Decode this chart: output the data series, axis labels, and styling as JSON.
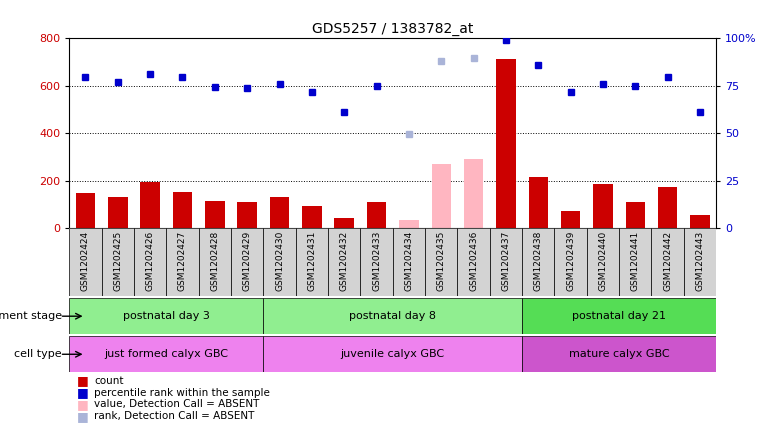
{
  "title": "GDS5257 / 1383782_at",
  "samples": [
    "GSM1202424",
    "GSM1202425",
    "GSM1202426",
    "GSM1202427",
    "GSM1202428",
    "GSM1202429",
    "GSM1202430",
    "GSM1202431",
    "GSM1202432",
    "GSM1202433",
    "GSM1202434",
    "GSM1202435",
    "GSM1202436",
    "GSM1202437",
    "GSM1202438",
    "GSM1202439",
    "GSM1202440",
    "GSM1202441",
    "GSM1202442",
    "GSM1202443"
  ],
  "count_values": [
    150,
    130,
    195,
    155,
    115,
    110,
    130,
    95,
    45,
    110,
    35,
    null,
    null,
    710,
    215,
    75,
    185,
    110,
    175,
    55
  ],
  "count_absent": [
    null,
    null,
    null,
    null,
    null,
    null,
    null,
    null,
    null,
    null,
    35,
    270,
    290,
    null,
    null,
    null,
    null,
    null,
    null,
    null
  ],
  "rank_values": [
    635,
    615,
    650,
    635,
    595,
    590,
    605,
    575,
    490,
    600,
    null,
    null,
    null,
    790,
    685,
    575,
    605,
    600,
    635,
    490
  ],
  "rank_absent": [
    null,
    null,
    null,
    null,
    null,
    null,
    null,
    null,
    null,
    null,
    395,
    705,
    715,
    null,
    null,
    null,
    null,
    null,
    null,
    null
  ],
  "ylim_left": [
    0,
    800
  ],
  "yticks_left": [
    0,
    200,
    400,
    600,
    800
  ],
  "yticks_right": [
    0,
    25,
    50,
    75,
    100
  ],
  "dev_stage_groups": [
    {
      "label": "postnatal day 3",
      "start": 0,
      "end": 5,
      "color": "#90ee90"
    },
    {
      "label": "postnatal day 8",
      "start": 6,
      "end": 13,
      "color": "#90ee90"
    },
    {
      "label": "postnatal day 21",
      "start": 14,
      "end": 19,
      "color": "#55dd55"
    }
  ],
  "cell_type_groups": [
    {
      "label": "just formed calyx GBC",
      "start": 0,
      "end": 5,
      "color": "#ee82ee"
    },
    {
      "label": "juvenile calyx GBC",
      "start": 6,
      "end": 13,
      "color": "#ee82ee"
    },
    {
      "label": "mature calyx GBC",
      "start": 14,
      "end": 19,
      "color": "#cc55cc"
    }
  ],
  "dev_stage_label": "development stage",
  "cell_type_label": "cell type",
  "bar_color_present": "#cc0000",
  "bar_color_absent": "#ffb6c1",
  "dot_color_present": "#0000cc",
  "dot_color_absent": "#aab4d8",
  "tick_bg_color": "#d3d3d3",
  "legend_items": [
    {
      "color": "#cc0000",
      "label": "count"
    },
    {
      "color": "#0000cc",
      "label": "percentile rank within the sample"
    },
    {
      "color": "#ffb6c1",
      "label": "value, Detection Call = ABSENT"
    },
    {
      "color": "#aab4d8",
      "label": "rank, Detection Call = ABSENT"
    }
  ]
}
